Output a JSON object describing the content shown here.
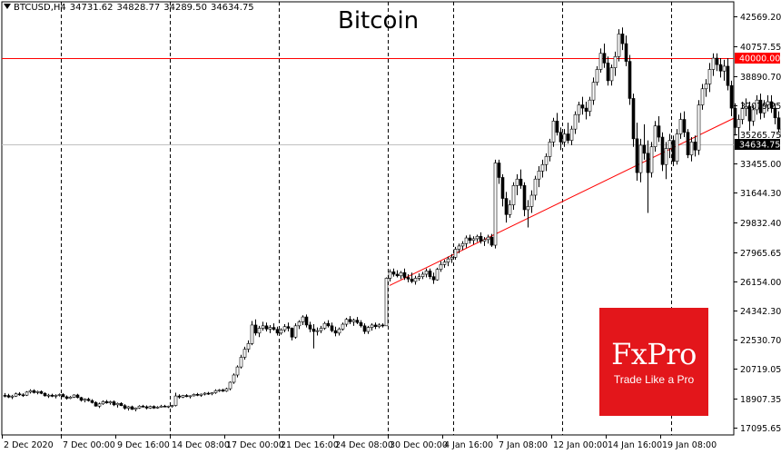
{
  "header": {
    "symbol": "BTCUSD,H4",
    "open": "34731.62",
    "high": "34828.77",
    "low": "34289.50",
    "close": "34634.75"
  },
  "title": "Bitcoin",
  "logo": {
    "brand": "FxPro",
    "tagline": "Trade Like a Pro",
    "color": "#e3161b"
  },
  "chart_data": {
    "type": "candlestick",
    "timeframe": "H4",
    "ylim": [
      16633.27,
      43493.35
    ],
    "y_ticks": [
      "42569.20",
      "40757.55",
      "38890.70",
      "37079.25",
      "35265.75",
      "33455.00",
      "31644.30",
      "29832.40",
      "27965.65",
      "26154.00",
      "24342.30",
      "22530.70",
      "20719.05",
      "18907.35",
      "17095.65"
    ],
    "x_ticks": [
      "2 Dec 2020",
      "7 Dec 00:00",
      "9 Dec 16:00",
      "14 Dec 08:00",
      "17 Dec 00:00",
      "21 Dec 16:00",
      "24 Dec 08:00",
      "30 Dec 00:00",
      "4 Jan 16:00",
      "7 Jan 08:00",
      "12 Jan 00:00",
      "14 Jan 16:00",
      "19 Jan 08:00"
    ],
    "vgrid_positions": [
      67,
      187,
      307,
      427,
      499,
      619,
      739
    ],
    "price_levels": [
      {
        "label": "40000.00",
        "value": 40000.0,
        "color": "#ff0000",
        "type": "resistance"
      },
      {
        "label": "34634.75",
        "value": 34634.75,
        "color": "#000000",
        "type": "current"
      }
    ],
    "trendline": {
      "from": {
        "bar": 106,
        "price": 25900
      },
      "to": {
        "bar": 201,
        "price": 36300
      },
      "color": "#ff0000"
    },
    "candles": [
      [
        19087,
        19230,
        18960,
        19075
      ],
      [
        19075,
        19180,
        18920,
        18980
      ],
      [
        18980,
        19120,
        18860,
        19040
      ],
      [
        19040,
        19260,
        18990,
        19180
      ],
      [
        19180,
        19290,
        19060,
        19120
      ],
      [
        19120,
        19220,
        18990,
        19100
      ],
      [
        19100,
        19350,
        19050,
        19290
      ],
      [
        19290,
        19460,
        19200,
        19380
      ],
      [
        19380,
        19460,
        19200,
        19260
      ],
      [
        19260,
        19380,
        19150,
        19320
      ],
      [
        19320,
        19390,
        19160,
        19210
      ],
      [
        19210,
        19280,
        19010,
        19060
      ],
      [
        19060,
        19180,
        18930,
        19100
      ],
      [
        19100,
        19190,
        18980,
        19030
      ],
      [
        19030,
        19150,
        18900,
        19090
      ],
      [
        19090,
        19200,
        19020,
        19140
      ],
      [
        19140,
        19220,
        18980,
        19000
      ],
      [
        19000,
        19080,
        18820,
        18900
      ],
      [
        18900,
        19050,
        18860,
        18980
      ],
      [
        18980,
        19150,
        18930,
        19110
      ],
      [
        19110,
        19180,
        18900,
        18950
      ],
      [
        18950,
        19000,
        18700,
        18780
      ],
      [
        18780,
        18900,
        18650,
        18850
      ],
      [
        18850,
        18940,
        18700,
        18760
      ],
      [
        18760,
        18850,
        18580,
        18640
      ],
      [
        18640,
        18720,
        18390,
        18420
      ],
      [
        18420,
        18640,
        18300,
        18560
      ],
      [
        18560,
        18780,
        18500,
        18700
      ],
      [
        18700,
        18800,
        18570,
        18620
      ],
      [
        18620,
        18750,
        18510,
        18690
      ],
      [
        18690,
        18770,
        18420,
        18500
      ],
      [
        18500,
        18640,
        18330,
        18590
      ],
      [
        18590,
        18660,
        18420,
        18450
      ],
      [
        18450,
        18540,
        18200,
        18290
      ],
      [
        18290,
        18430,
        18150,
        18380
      ],
      [
        18380,
        18450,
        18180,
        18220
      ],
      [
        18220,
        18340,
        18100,
        18300
      ],
      [
        18300,
        18480,
        18250,
        18420
      ],
      [
        18420,
        18500,
        18330,
        18380
      ],
      [
        18380,
        18460,
        18220,
        18300
      ],
      [
        18300,
        18450,
        18250,
        18400
      ],
      [
        18400,
        18460,
        18250,
        18300
      ],
      [
        18300,
        18420,
        18260,
        18360
      ],
      [
        18360,
        18500,
        18340,
        18420
      ],
      [
        18420,
        18500,
        18350,
        18380
      ],
      [
        18380,
        18450,
        18300,
        18420
      ],
      [
        18420,
        18500,
        18330,
        18460
      ],
      [
        18460,
        19250,
        18400,
        19050
      ],
      [
        19050,
        19150,
        18880,
        18980
      ],
      [
        18980,
        19120,
        18920,
        19080
      ],
      [
        19080,
        19160,
        18970,
        19010
      ],
      [
        19010,
        19090,
        18900,
        19060
      ],
      [
        19060,
        19200,
        19020,
        19150
      ],
      [
        19150,
        19240,
        19040,
        19090
      ],
      [
        19090,
        19200,
        19000,
        19160
      ],
      [
        19160,
        19280,
        19080,
        19220
      ],
      [
        19220,
        19300,
        19120,
        19180
      ],
      [
        19180,
        19280,
        19100,
        19250
      ],
      [
        19250,
        19460,
        19180,
        19380
      ],
      [
        19380,
        19480,
        19300,
        19420
      ],
      [
        19420,
        19500,
        19300,
        19350
      ],
      [
        19350,
        19560,
        19300,
        19500
      ],
      [
        19500,
        19950,
        19400,
        19900
      ],
      [
        19900,
        20450,
        19800,
        20350
      ],
      [
        20350,
        20950,
        20200,
        20850
      ],
      [
        20850,
        21600,
        20750,
        21450
      ],
      [
        21450,
        22100,
        21300,
        21950
      ],
      [
        21950,
        22500,
        21750,
        22300
      ],
      [
        22300,
        23700,
        22200,
        23450
      ],
      [
        23450,
        23800,
        22800,
        22950
      ],
      [
        22950,
        23400,
        22700,
        23250
      ],
      [
        23250,
        23650,
        23100,
        23400
      ],
      [
        23400,
        23600,
        23050,
        23200
      ],
      [
        23200,
        23450,
        22950,
        23300
      ],
      [
        23300,
        23550,
        23100,
        23180
      ],
      [
        23180,
        23350,
        22800,
        22950
      ],
      [
        22950,
        23250,
        22850,
        23150
      ],
      [
        23150,
        23500,
        23000,
        23350
      ],
      [
        23350,
        23600,
        23050,
        23250
      ],
      [
        23250,
        23300,
        22500,
        22700
      ],
      [
        22700,
        23550,
        22600,
        23400
      ],
      [
        23400,
        23750,
        23200,
        23650
      ],
      [
        23650,
        24050,
        23450,
        23950
      ],
      [
        23950,
        24100,
        23300,
        23450
      ],
      [
        23450,
        23650,
        23000,
        23200
      ],
      [
        23200,
        23500,
        22000,
        23050
      ],
      [
        23050,
        23300,
        22800,
        23100
      ],
      [
        23100,
        23400,
        22950,
        23250
      ],
      [
        23250,
        23650,
        23150,
        23550
      ],
      [
        23550,
        23750,
        23300,
        23400
      ],
      [
        23400,
        23600,
        23000,
        23100
      ],
      [
        23100,
        23350,
        22750,
        22950
      ],
      [
        22950,
        23300,
        22800,
        23200
      ],
      [
        23200,
        23600,
        23100,
        23500
      ],
      [
        23500,
        23900,
        23350,
        23800
      ],
      [
        23800,
        24000,
        23500,
        23650
      ],
      [
        23650,
        23850,
        23400,
        23750
      ],
      [
        23750,
        23950,
        23500,
        23600
      ],
      [
        23600,
        23750,
        23300,
        23400
      ],
      [
        23400,
        23550,
        22900,
        23050
      ],
      [
        23050,
        23400,
        22900,
        23300
      ],
      [
        23300,
        23550,
        23100,
        23450
      ],
      [
        23450,
        23600,
        23200,
        23350
      ],
      [
        23350,
        23550,
        23250,
        23450
      ],
      [
        23450,
        23550,
        23300,
        23400
      ],
      [
        23400,
        26400,
        23400,
        26350
      ],
      [
        26350,
        26900,
        26150,
        26750
      ],
      [
        26750,
        26950,
        26450,
        26600
      ],
      [
        26600,
        26850,
        26400,
        26500
      ],
      [
        26500,
        26800,
        26300,
        26700
      ],
      [
        26700,
        26950,
        26250,
        26400
      ],
      [
        26400,
        26600,
        26100,
        26300
      ],
      [
        26300,
        26700,
        26050,
        26150
      ],
      [
        26150,
        26500,
        25950,
        26350
      ],
      [
        26350,
        26650,
        26200,
        26450
      ],
      [
        26450,
        26750,
        26300,
        26600
      ],
      [
        26600,
        26950,
        26400,
        26800
      ],
      [
        26800,
        26950,
        26300,
        26450
      ],
      [
        26450,
        26700,
        26000,
        26250
      ],
      [
        26250,
        27000,
        26200,
        26900
      ],
      [
        26900,
        27400,
        26750,
        27200
      ],
      [
        27200,
        27500,
        27000,
        27350
      ],
      [
        27350,
        27700,
        27100,
        27550
      ],
      [
        27550,
        27850,
        27300,
        27650
      ],
      [
        27650,
        28300,
        27500,
        28150
      ],
      [
        28150,
        28500,
        27900,
        28350
      ],
      [
        28350,
        28650,
        28100,
        28500
      ],
      [
        28500,
        29000,
        28250,
        28850
      ],
      [
        28850,
        29050,
        28500,
        28700
      ],
      [
        28700,
        28950,
        28450,
        28800
      ],
      [
        28800,
        29050,
        28600,
        28950
      ],
      [
        28950,
        29200,
        28500,
        28650
      ],
      [
        28650,
        28900,
        28350,
        28750
      ],
      [
        28750,
        29050,
        28500,
        28900
      ],
      [
        28900,
        29100,
        28300,
        28400
      ],
      [
        28400,
        33700,
        28200,
        33500
      ],
      [
        33500,
        33700,
        32200,
        32600
      ],
      [
        32600,
        32800,
        30800,
        31300
      ],
      [
        31300,
        31700,
        29800,
        30300
      ],
      [
        30300,
        31200,
        30100,
        30900
      ],
      [
        30900,
        32300,
        30600,
        32100
      ],
      [
        32100,
        32800,
        31500,
        32500
      ],
      [
        32500,
        33100,
        31900,
        32100
      ],
      [
        32100,
        32300,
        30200,
        30600
      ],
      [
        30600,
        31200,
        29500,
        30800
      ],
      [
        30800,
        31800,
        30400,
        31500
      ],
      [
        31500,
        32700,
        31200,
        32500
      ],
      [
        32500,
        33300,
        32000,
        33000
      ],
      [
        33000,
        33700,
        32600,
        33400
      ],
      [
        33400,
        34100,
        33000,
        33900
      ],
      [
        33900,
        35000,
        33600,
        34800
      ],
      [
        34800,
        36300,
        34500,
        36100
      ],
      [
        36100,
        36600,
        35200,
        35400
      ],
      [
        35400,
        35700,
        34300,
        34800
      ],
      [
        34800,
        35600,
        34500,
        35300
      ],
      [
        35300,
        36000,
        34700,
        34900
      ],
      [
        34900,
        35800,
        34600,
        35600
      ],
      [
        35600,
        36700,
        35300,
        36500
      ],
      [
        36500,
        37300,
        36000,
        37100
      ],
      [
        37100,
        37600,
        36500,
        36900
      ],
      [
        36900,
        37300,
        36200,
        36700
      ],
      [
        36700,
        37600,
        36400,
        37400
      ],
      [
        37400,
        38800,
        37100,
        38500
      ],
      [
        38500,
        39500,
        38300,
        39300
      ],
      [
        39300,
        40600,
        39100,
        40300
      ],
      [
        40300,
        40900,
        39400,
        39700
      ],
      [
        39700,
        40100,
        38300,
        38600
      ],
      [
        38600,
        39600,
        38300,
        39400
      ],
      [
        39400,
        40400,
        38900,
        40100
      ],
      [
        40100,
        41800,
        39800,
        41500
      ],
      [
        41500,
        41900,
        40500,
        40900
      ],
      [
        40900,
        41400,
        39500,
        39800
      ],
      [
        39800,
        40200,
        37100,
        37500
      ],
      [
        37500,
        37800,
        34500,
        35000
      ],
      [
        35000,
        36000,
        32400,
        32900
      ],
      [
        32900,
        35000,
        32300,
        34600
      ],
      [
        34600,
        35900,
        33700,
        34100
      ],
      [
        34100,
        34900,
        30400,
        32900
      ],
      [
        32900,
        34800,
        32600,
        34500
      ],
      [
        34500,
        36100,
        34200,
        35800
      ],
      [
        35800,
        36400,
        34800,
        35100
      ],
      [
        35100,
        35400,
        33000,
        33400
      ],
      [
        33400,
        34800,
        32500,
        34400
      ],
      [
        34400,
        35300,
        33800,
        34900
      ],
      [
        34900,
        35200,
        33300,
        33600
      ],
      [
        33600,
        35600,
        33400,
        35300
      ],
      [
        35300,
        36600,
        35000,
        36200
      ],
      [
        36200,
        36700,
        35100,
        35400
      ],
      [
        35400,
        35600,
        33800,
        34000
      ],
      [
        34000,
        35100,
        33600,
        34800
      ],
      [
        34800,
        35200,
        33900,
        34300
      ],
      [
        34300,
        37400,
        34000,
        37100
      ],
      [
        37100,
        38400,
        36800,
        38100
      ],
      [
        38100,
        38700,
        37600,
        38400
      ],
      [
        38400,
        39700,
        37900,
        39300
      ],
      [
        39300,
        40300,
        38900,
        40000
      ],
      [
        40000,
        40300,
        39200,
        39600
      ],
      [
        39600,
        40000,
        38800,
        39200
      ],
      [
        39200,
        39900,
        38600,
        39500
      ],
      [
        39500,
        40000,
        38000,
        38300
      ],
      [
        38300,
        38600,
        36400,
        36900
      ],
      [
        36900,
        37200,
        35200,
        35700
      ],
      [
        35700,
        36500,
        35000,
        36200
      ],
      [
        36200,
        37300,
        35900,
        36900
      ],
      [
        36900,
        37500,
        36400,
        37000
      ],
      [
        37000,
        37300,
        35500,
        36100
      ],
      [
        36100,
        37100,
        35800,
        36800
      ],
      [
        36800,
        37700,
        36500,
        37400
      ],
      [
        37400,
        37800,
        36200,
        36600
      ],
      [
        36600,
        37400,
        36300,
        37100
      ],
      [
        37100,
        37700,
        36700,
        37300
      ],
      [
        37300,
        37700,
        36600,
        36900
      ],
      [
        36900,
        37200,
        35900,
        36300
      ],
      [
        36300,
        36700,
        35400,
        35600
      ],
      [
        35600,
        35900,
        34900,
        35100
      ],
      [
        35100,
        35300,
        34400,
        34731.62
      ],
      [
        34731.62,
        34828.77,
        34289.5,
        34634.75
      ]
    ]
  }
}
